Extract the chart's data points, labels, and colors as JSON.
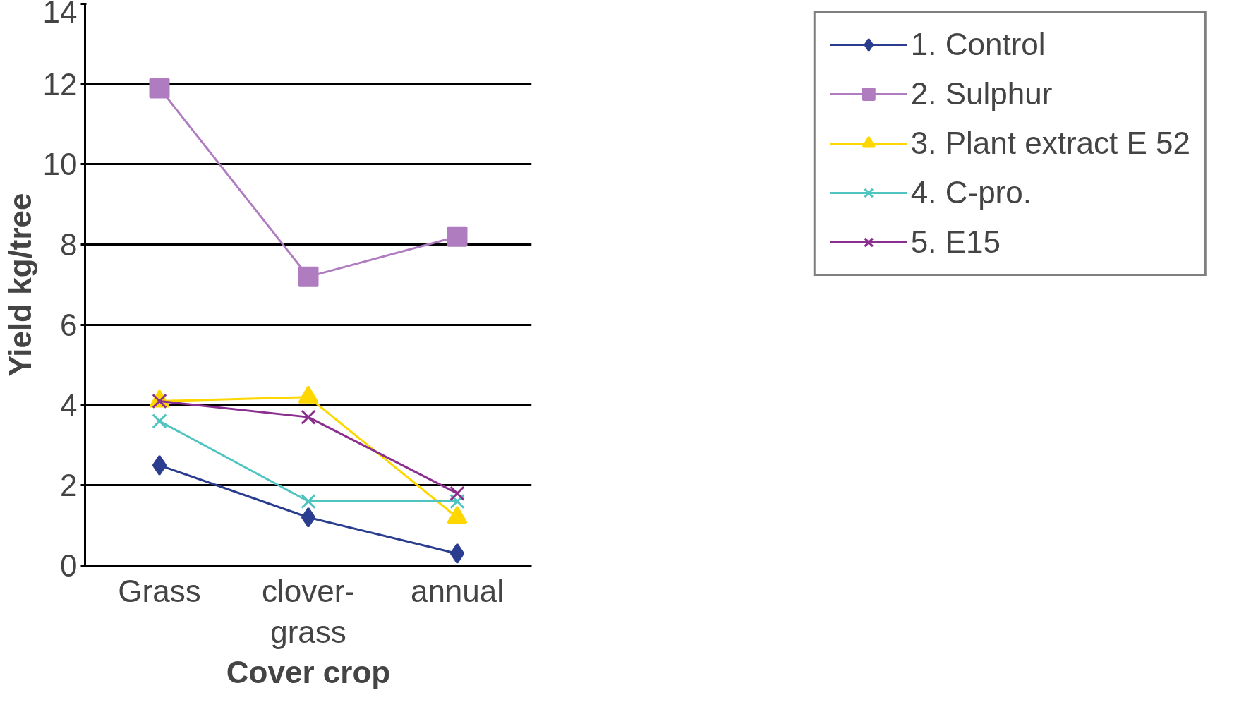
{
  "chart_data": {
    "type": "line",
    "xlabel": "Cover crop",
    "ylabel": "Yield kg/tree",
    "categories": [
      "Grass",
      "clover-\ngrass",
      "annual"
    ],
    "series": [
      {
        "name": "1. Control",
        "color": "#2a3d8f",
        "marker": "diamond",
        "values": [
          2.5,
          1.2,
          0.3
        ]
      },
      {
        "name": "2. Sulphur",
        "color": "#b07cc0",
        "marker": "square",
        "values": [
          11.9,
          7.2,
          8.2
        ]
      },
      {
        "name": "3. Plant extract E 52",
        "color": "#ffd700",
        "marker": "triangle",
        "values": [
          4.1,
          4.2,
          1.2
        ]
      },
      {
        "name": "4. C-pro.",
        "color": "#4fc4c0",
        "marker": "cross",
        "values": [
          3.6,
          1.6,
          1.6
        ]
      },
      {
        "name": "5. E15",
        "color": "#8b2f8f",
        "marker": "cross",
        "values": [
          4.1,
          3.7,
          1.8
        ]
      }
    ],
    "ylim": [
      0,
      14
    ],
    "yticks": [
      0,
      2,
      4,
      6,
      8,
      10,
      12,
      14
    ],
    "grid": "y",
    "legend": "right"
  }
}
